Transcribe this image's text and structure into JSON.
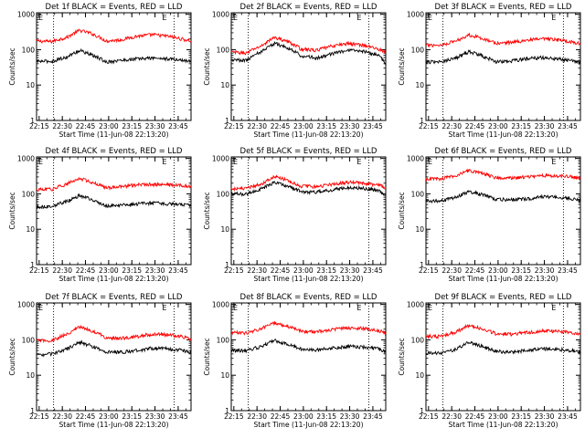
{
  "chart_data": [
    {
      "type": "line",
      "title": "Det 1f BLACK = Events, RED = LLD",
      "xlabel": "Start Time (11-Jun-08 22:13:20)",
      "ylabel": "Counts/sec",
      "x_tick_labels": [
        "22:15",
        "22:30",
        "22:45",
        "23:00",
        "23:15",
        "23:30",
        "23:45"
      ],
      "x_tick_values_min": [
        1.67,
        16.67,
        31.67,
        46.67,
        61.67,
        76.67,
        91.67
      ],
      "xlim_min": [
        0,
        100
      ],
      "y_tick_labels": [
        "1",
        "10",
        "100",
        "1000"
      ],
      "yscale": "log",
      "ylim": [
        1,
        1100
      ],
      "marker_lines_min": [
        11,
        89
      ],
      "corner_labels": [
        "E",
        "E"
      ],
      "series": [
        {
          "color": "#ff0000",
          "x": [
            0,
            10,
            20,
            28,
            35,
            45,
            55,
            65,
            75,
            85,
            95,
            100
          ],
          "y": [
            175,
            170,
            225,
            350,
            290,
            175,
            190,
            240,
            265,
            240,
            195,
            175
          ]
        },
        {
          "color": "#000000",
          "x": [
            0,
            10,
            20,
            28,
            35,
            45,
            55,
            65,
            75,
            85,
            95,
            100
          ],
          "y": [
            47,
            47,
            62,
            95,
            72,
            45,
            50,
            55,
            58,
            55,
            50,
            46
          ]
        }
      ]
    },
    {
      "type": "line",
      "title": "Det 2f BLACK = Events, RED = LLD",
      "xlabel": "Start Time (11-Jun-08 22:13:20)",
      "ylabel": "Counts/sec",
      "x_tick_labels": [
        "22:15",
        "22:30",
        "22:45",
        "23:00",
        "23:15",
        "23:30",
        "23:45"
      ],
      "x_tick_values_min": [
        1.67,
        16.67,
        31.67,
        46.67,
        61.67,
        76.67,
        91.67
      ],
      "xlim_min": [
        0,
        100
      ],
      "y_tick_labels": [
        "1",
        "10",
        "100",
        "1000"
      ],
      "yscale": "log",
      "ylim": [
        1,
        1100
      ],
      "marker_lines_min": [
        11,
        89
      ],
      "corner_labels": [
        "E",
        "E"
      ],
      "series": [
        {
          "color": "#ff0000",
          "x": [
            0,
            10,
            20,
            28,
            35,
            45,
            55,
            65,
            75,
            85,
            95,
            100
          ],
          "y": [
            85,
            80,
            130,
            220,
            180,
            105,
            95,
            125,
            150,
            135,
            105,
            85
          ]
        },
        {
          "color": "#000000",
          "x": [
            0,
            10,
            20,
            28,
            35,
            45,
            55,
            65,
            75,
            85,
            95,
            100
          ],
          "y": [
            52,
            50,
            90,
            150,
            120,
            68,
            58,
            75,
            95,
            90,
            70,
            40
          ]
        }
      ]
    },
    {
      "type": "line",
      "title": "Det 3f BLACK = Events, RED = LLD",
      "xlabel": "Start Time (11-Jun-08 22:13:20)",
      "ylabel": "Counts/sec",
      "x_tick_labels": [
        "22:15",
        "22:30",
        "22:45",
        "23:00",
        "23:15",
        "23:30",
        "23:45"
      ],
      "x_tick_values_min": [
        1.67,
        16.67,
        31.67,
        46.67,
        61.67,
        76.67,
        91.67
      ],
      "xlim_min": [
        0,
        100
      ],
      "y_tick_labels": [
        "1",
        "10",
        "100",
        "1000"
      ],
      "yscale": "log",
      "ylim": [
        1,
        1100
      ],
      "marker_lines_min": [
        11,
        89
      ],
      "corner_labels": [
        "E",
        "E"
      ],
      "series": [
        {
          "color": "#ff0000",
          "x": [
            0,
            10,
            20,
            28,
            35,
            45,
            55,
            65,
            75,
            85,
            95,
            100
          ],
          "y": [
            135,
            135,
            180,
            260,
            220,
            150,
            160,
            185,
            200,
            190,
            165,
            145
          ]
        },
        {
          "color": "#000000",
          "x": [
            0,
            10,
            20,
            28,
            35,
            45,
            55,
            65,
            75,
            85,
            95,
            100
          ],
          "y": [
            45,
            45,
            60,
            88,
            70,
            45,
            48,
            55,
            60,
            55,
            48,
            42
          ]
        }
      ]
    },
    {
      "type": "line",
      "title": "Det 4f BLACK = Events, RED = LLD",
      "xlabel": "Start Time (11-Jun-08 22:13:20)",
      "ylabel": "Counts/sec",
      "x_tick_labels": [
        "22:15",
        "22:30",
        "22:45",
        "23:00",
        "23:15",
        "23:30",
        "23:45"
      ],
      "x_tick_values_min": [
        1.67,
        16.67,
        31.67,
        46.67,
        61.67,
        76.67,
        91.67
      ],
      "xlim_min": [
        0,
        100
      ],
      "y_tick_labels": [
        "1",
        "10",
        "100",
        "1000"
      ],
      "yscale": "log",
      "ylim": [
        1,
        1100
      ],
      "marker_lines_min": [
        11,
        89
      ],
      "corner_labels": [
        "E",
        "E"
      ],
      "series": [
        {
          "color": "#ff0000",
          "x": [
            0,
            10,
            20,
            28,
            35,
            45,
            55,
            65,
            75,
            85,
            95,
            100
          ],
          "y": [
            130,
            135,
            190,
            270,
            220,
            150,
            160,
            180,
            185,
            180,
            170,
            160
          ]
        },
        {
          "color": "#000000",
          "x": [
            0,
            10,
            20,
            28,
            35,
            45,
            55,
            65,
            75,
            85,
            95,
            100
          ],
          "y": [
            42,
            45,
            62,
            90,
            70,
            45,
            48,
            52,
            55,
            52,
            50,
            47
          ]
        }
      ]
    },
    {
      "type": "line",
      "title": "Det 5f BLACK = Events, RED = LLD",
      "xlabel": "Start Time (11-Jun-08 22:13:20)",
      "ylabel": "Counts/sec",
      "x_tick_labels": [
        "22:15",
        "22:30",
        "22:45",
        "23:00",
        "23:15",
        "23:30",
        "23:45"
      ],
      "x_tick_values_min": [
        1.67,
        16.67,
        31.67,
        46.67,
        61.67,
        76.67,
        91.67
      ],
      "xlim_min": [
        0,
        100
      ],
      "y_tick_labels": [
        "1",
        "10",
        "100",
        "1000"
      ],
      "yscale": "log",
      "ylim": [
        1,
        1100
      ],
      "marker_lines_min": [
        11,
        89
      ],
      "corner_labels": [
        "E",
        "E"
      ],
      "series": [
        {
          "color": "#ff0000",
          "x": [
            0,
            10,
            20,
            28,
            35,
            45,
            55,
            65,
            75,
            85,
            95,
            100
          ],
          "y": [
            140,
            140,
            195,
            310,
            250,
            165,
            160,
            185,
            210,
            205,
            180,
            150
          ]
        },
        {
          "color": "#000000",
          "x": [
            0,
            10,
            20,
            28,
            35,
            45,
            55,
            65,
            75,
            85,
            95,
            100
          ],
          "y": [
            100,
            98,
            140,
            210,
            175,
            115,
            112,
            128,
            150,
            145,
            125,
            95
          ]
        }
      ]
    },
    {
      "type": "line",
      "title": "Det 6f BLACK = Events, RED = LLD",
      "xlabel": "Start Time (11-Jun-08 22:13:20)",
      "ylabel": "Counts/sec",
      "x_tick_labels": [
        "22:15",
        "22:30",
        "22:45",
        "23:00",
        "23:15",
        "23:30",
        "23:45"
      ],
      "x_tick_values_min": [
        1.67,
        16.67,
        31.67,
        46.67,
        61.67,
        76.67,
        91.67
      ],
      "xlim_min": [
        0,
        100
      ],
      "y_tick_labels": [
        "1",
        "10",
        "100",
        "1000"
      ],
      "yscale": "log",
      "ylim": [
        1,
        1100
      ],
      "marker_lines_min": [
        11,
        89
      ],
      "corner_labels": [
        "E",
        "E"
      ],
      "series": [
        {
          "color": "#ff0000",
          "x": [
            0,
            10,
            20,
            28,
            35,
            45,
            55,
            65,
            75,
            85,
            95,
            100
          ],
          "y": [
            265,
            265,
            330,
            460,
            390,
            290,
            280,
            300,
            330,
            320,
            300,
            270
          ]
        },
        {
          "color": "#000000",
          "x": [
            0,
            10,
            20,
            28,
            35,
            45,
            55,
            65,
            75,
            85,
            95,
            100
          ],
          "y": [
            63,
            63,
            80,
            118,
            98,
            70,
            68,
            72,
            82,
            80,
            72,
            62
          ]
        }
      ]
    },
    {
      "type": "line",
      "title": "Det 7f BLACK = Events, RED = LLD",
      "xlabel": "Start Time (11-Jun-08 22:13:20)",
      "ylabel": "Counts/sec",
      "x_tick_labels": [
        "22:15",
        "22:30",
        "22:45",
        "23:00",
        "23:15",
        "23:30",
        "23:45"
      ],
      "x_tick_values_min": [
        1.67,
        16.67,
        31.67,
        46.67,
        61.67,
        76.67,
        91.67
      ],
      "xlim_min": [
        0,
        100
      ],
      "y_tick_labels": [
        "1",
        "10",
        "100",
        "1000"
      ],
      "yscale": "log",
      "ylim": [
        1,
        1100
      ],
      "marker_lines_min": [
        11,
        89
      ],
      "corner_labels": [
        "E",
        "E"
      ],
      "series": [
        {
          "color": "#ff0000",
          "x": [
            0,
            10,
            20,
            28,
            35,
            45,
            55,
            65,
            75,
            85,
            95,
            100
          ],
          "y": [
            95,
            95,
            145,
            230,
            185,
            115,
            110,
            125,
            145,
            140,
            120,
            105
          ]
        },
        {
          "color": "#000000",
          "x": [
            0,
            10,
            20,
            28,
            35,
            45,
            55,
            65,
            75,
            85,
            95,
            100
          ],
          "y": [
            38,
            40,
            55,
            85,
            68,
            45,
            45,
            50,
            58,
            56,
            50,
            45
          ]
        }
      ]
    },
    {
      "type": "line",
      "title": "Det 8f BLACK = Events, RED = LLD",
      "xlabel": "Start Time (11-Jun-08 22:13:20)",
      "ylabel": "Counts/sec",
      "x_tick_labels": [
        "22:15",
        "22:30",
        "22:45",
        "23:00",
        "23:15",
        "23:30",
        "23:45"
      ],
      "x_tick_values_min": [
        1.67,
        16.67,
        31.67,
        46.67,
        61.67,
        76.67,
        91.67
      ],
      "xlim_min": [
        0,
        100
      ],
      "y_tick_labels": [
        "1",
        "10",
        "100",
        "1000"
      ],
      "yscale": "log",
      "ylim": [
        1,
        1100
      ],
      "marker_lines_min": [
        11,
        89
      ],
      "corner_labels": [
        "E",
        "E"
      ],
      "series": [
        {
          "color": "#ff0000",
          "x": [
            0,
            10,
            20,
            28,
            35,
            45,
            55,
            65,
            75,
            85,
            95,
            100
          ],
          "y": [
            160,
            155,
            210,
            300,
            250,
            175,
            170,
            195,
            215,
            210,
            185,
            155
          ]
        },
        {
          "color": "#000000",
          "x": [
            0,
            10,
            20,
            28,
            35,
            45,
            55,
            65,
            75,
            85,
            95,
            100
          ],
          "y": [
            50,
            50,
            65,
            95,
            78,
            55,
            52,
            58,
            65,
            63,
            55,
            48
          ]
        }
      ]
    },
    {
      "type": "line",
      "title": "Det 9f BLACK = Events, RED = LLD",
      "xlabel": "Start Time (11-Jun-08 22:13:20)",
      "ylabel": "Counts/sec",
      "x_tick_labels": [
        "22:15",
        "22:30",
        "22:45",
        "23:00",
        "23:15",
        "23:30",
        "23:45"
      ],
      "x_tick_values_min": [
        1.67,
        16.67,
        31.67,
        46.67,
        61.67,
        76.67,
        91.67
      ],
      "xlim_min": [
        0,
        100
      ],
      "y_tick_labels": [
        "1",
        "10",
        "100",
        "1000"
      ],
      "yscale": "log",
      "ylim": [
        1,
        1100
      ],
      "marker_lines_min": [
        11,
        89
      ],
      "corner_labels": [
        "E",
        "E"
      ],
      "series": [
        {
          "color": "#ff0000",
          "x": [
            0,
            10,
            20,
            28,
            35,
            45,
            55,
            65,
            75,
            85,
            95,
            100
          ],
          "y": [
            125,
            125,
            170,
            255,
            210,
            150,
            145,
            160,
            180,
            175,
            160,
            135
          ]
        },
        {
          "color": "#000000",
          "x": [
            0,
            10,
            20,
            28,
            35,
            45,
            55,
            65,
            75,
            85,
            95,
            100
          ],
          "y": [
            42,
            42,
            55,
            85,
            68,
            47,
            45,
            50,
            56,
            54,
            50,
            44
          ]
        }
      ]
    }
  ]
}
